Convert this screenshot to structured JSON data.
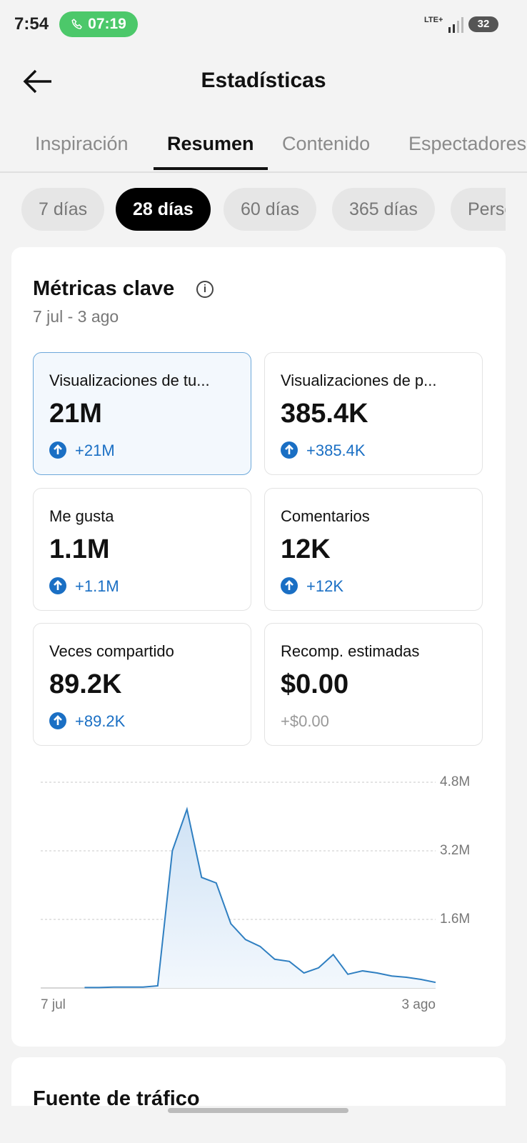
{
  "status_bar": {
    "time": "7:54",
    "call_timer": "07:19",
    "network": "LTE+",
    "battery": "32"
  },
  "header": {
    "title": "Estadísticas"
  },
  "tabs": {
    "items": [
      "Inspiración",
      "Resumen",
      "Contenido",
      "Espectadores"
    ],
    "active": 1
  },
  "periods": {
    "items": [
      "7 días",
      "28 días",
      "60 días",
      "365 días",
      "Personalizado"
    ],
    "active": 1
  },
  "key_metrics": {
    "title": "Métricas clave",
    "date_range": "7 jul - 3 ago",
    "cards": [
      {
        "label": "Visualizaciones de tu...",
        "value": "21M",
        "change": "+21M",
        "trend": "up",
        "selected": true
      },
      {
        "label": "Visualizaciones de p...",
        "value": "385.4K",
        "change": "+385.4K",
        "trend": "up",
        "selected": false
      },
      {
        "label": "Me gusta",
        "value": "1.1M",
        "change": "+1.1M",
        "trend": "up",
        "selected": false
      },
      {
        "label": "Comentarios",
        "value": "12K",
        "change": "+12K",
        "trend": "up",
        "selected": false
      },
      {
        "label": "Veces compartido",
        "value": "89.2K",
        "change": "+89.2K",
        "trend": "up",
        "selected": false
      },
      {
        "label": "Recomp. estimadas",
        "value": "$0.00",
        "change": "+$0.00",
        "trend": "neutral",
        "selected": false
      }
    ]
  },
  "chart_data": {
    "type": "line",
    "categories": [
      "7 jul",
      null,
      null,
      null,
      null,
      null,
      null,
      null,
      null,
      null,
      null,
      null,
      null,
      null,
      null,
      null,
      null,
      null,
      null,
      null,
      null,
      null,
      null,
      null,
      null,
      null,
      null,
      "3 ago"
    ],
    "series": [
      {
        "color": "#2f7fc1",
        "values": [
          null,
          null,
          null,
          0.01,
          0.01,
          0.02,
          0.02,
          0.02,
          0.05,
          3.2,
          4.17,
          2.58,
          2.45,
          1.5,
          1.13,
          0.97,
          0.67,
          0.62,
          0.35,
          0.47,
          0.78,
          0.32,
          0.4,
          0.35,
          0.28,
          0.25,
          0.2,
          0.13
        ]
      }
    ],
    "ylim": [
      0,
      4.8
    ],
    "yticks": [
      {
        "value": 1.6,
        "label": "1.6M"
      },
      {
        "value": 3.2,
        "label": "3.2M"
      },
      {
        "value": 4.8,
        "label": "4.8M"
      }
    ],
    "grid": true
  },
  "next_section": {
    "title": "Fuente de tráfico"
  }
}
